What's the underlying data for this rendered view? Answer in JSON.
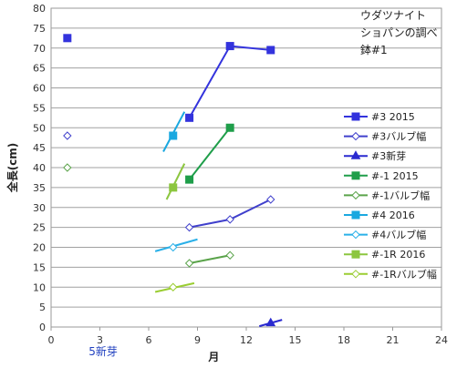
{
  "chart_data": {
    "type": "scatter",
    "title_lines": [
      "ウダツナイト",
      "ショパンの調べ",
      "鉢#1"
    ],
    "xlabel": "月",
    "ylabel": "全長(cm)",
    "xlim": [
      0,
      24
    ],
    "ylim": [
      0,
      80
    ],
    "xticks": [
      0,
      3,
      6,
      9,
      12,
      15,
      18,
      21,
      24
    ],
    "yticks": [
      0,
      5,
      10,
      15,
      20,
      25,
      30,
      35,
      40,
      45,
      50,
      55,
      60,
      65,
      70,
      75,
      80
    ],
    "grid": "horizontal",
    "legend_position": "right",
    "annotation": "5新芽",
    "series": [
      {
        "name": "#3 2015",
        "color": "#3333dd",
        "marker": "square",
        "fill": true,
        "line": true,
        "points": [
          [
            1.0,
            72.5
          ],
          [
            8.5,
            52.5
          ],
          [
            11.0,
            70.5
          ],
          [
            13.5,
            69.5
          ]
        ],
        "line_points": [
          [
            8.5,
            52.5
          ],
          [
            11.0,
            70.5
          ],
          [
            13.5,
            69.5
          ]
        ]
      },
      {
        "name": "#3バルブ幅",
        "color": "#4040cc",
        "marker": "diamond",
        "fill": false,
        "line": true,
        "points": [
          [
            1.0,
            48.0
          ],
          [
            8.5,
            25.0
          ],
          [
            11.0,
            27.0
          ],
          [
            13.5,
            32.0
          ]
        ],
        "line_points": [
          [
            8.5,
            25.0
          ],
          [
            11.0,
            27.0
          ],
          [
            13.5,
            32.0
          ]
        ]
      },
      {
        "name": "#3新芽",
        "color": "#2a2ad0",
        "marker": "triangle",
        "fill": true,
        "line": true,
        "points": [
          [
            13.5,
            1.0
          ]
        ],
        "line_points": [
          [
            12.8,
            0.2
          ],
          [
            14.2,
            1.8
          ]
        ]
      },
      {
        "name": "#-1 2015",
        "color": "#1f9e4a",
        "marker": "square",
        "fill": true,
        "line": true,
        "points": [
          [
            8.5,
            37.0
          ],
          [
            11.0,
            50.0
          ]
        ],
        "line_points": [
          [
            8.5,
            37.0
          ],
          [
            11.0,
            50.0
          ]
        ]
      },
      {
        "name": "#-1バルブ幅",
        "color": "#5aa34a",
        "marker": "diamond",
        "fill": false,
        "line": true,
        "points": [
          [
            1.0,
            40.0
          ],
          [
            8.5,
            16.0
          ],
          [
            11.0,
            18.0
          ]
        ],
        "line_points": [
          [
            8.5,
            16.0
          ],
          [
            11.0,
            18.0
          ]
        ]
      },
      {
        "name": "#4 2016",
        "color": "#1aa8e0",
        "marker": "square",
        "fill": true,
        "line": true,
        "points": [
          [
            7.5,
            48.0
          ]
        ],
        "line_points": [
          [
            6.9,
            44.0
          ],
          [
            8.2,
            54.0
          ]
        ]
      },
      {
        "name": "#4バルブ幅",
        "color": "#2ab0e8",
        "marker": "diamond",
        "fill": false,
        "line": true,
        "points": [
          [
            7.5,
            20.0
          ]
        ],
        "line_points": [
          [
            6.4,
            19.0
          ],
          [
            9.0,
            22.0
          ]
        ]
      },
      {
        "name": "#-1R 2016",
        "color": "#8cc63f",
        "marker": "square",
        "fill": true,
        "line": true,
        "points": [
          [
            7.5,
            35.0
          ]
        ],
        "line_points": [
          [
            7.1,
            32.0
          ],
          [
            8.2,
            41.0
          ]
        ]
      },
      {
        "name": "#-1Rバルブ幅",
        "color": "#9acd32",
        "marker": "diamond",
        "fill": false,
        "line": true,
        "points": [
          [
            7.5,
            10.0
          ]
        ],
        "line_points": [
          [
            6.4,
            8.8
          ],
          [
            8.8,
            11.0
          ]
        ]
      }
    ]
  }
}
